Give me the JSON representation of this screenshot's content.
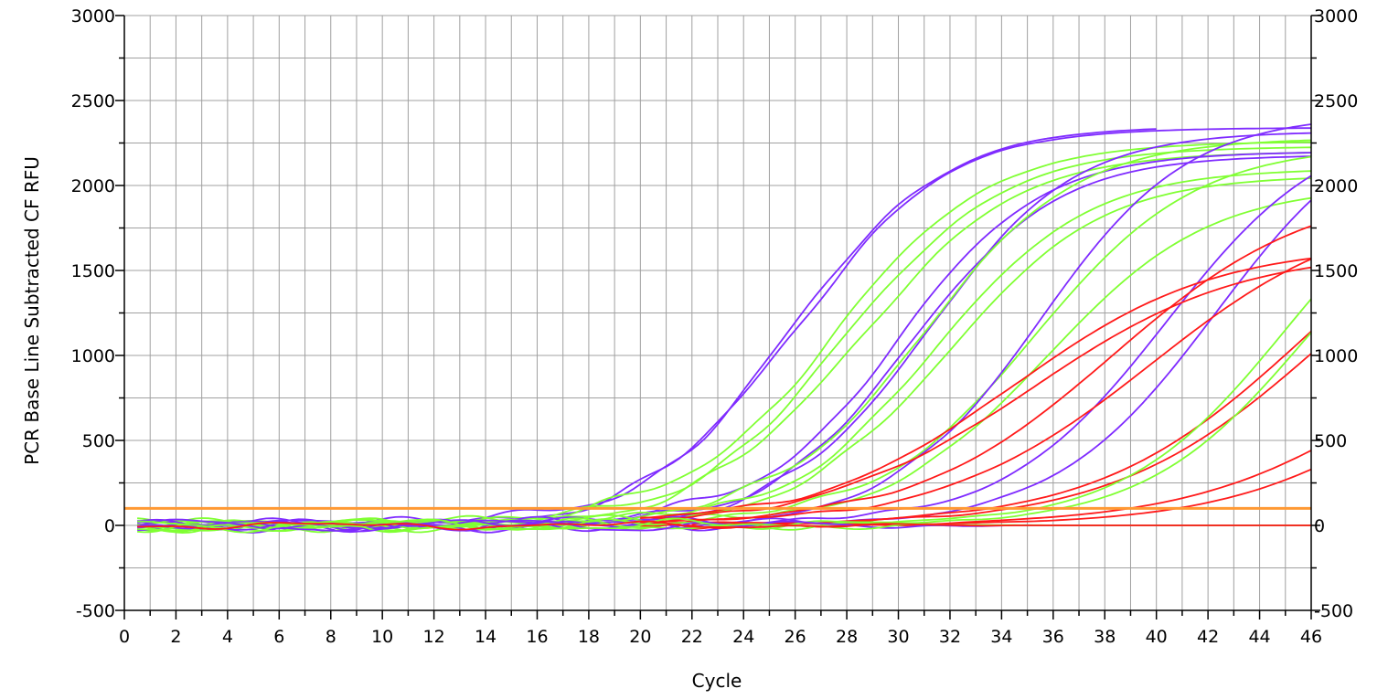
{
  "chart_data": {
    "type": "line",
    "title": "",
    "xlabel": "Cycle",
    "ylabel": "PCR Base Line Subtracted CF RFU",
    "xlim": [
      0,
      46
    ],
    "ylim": [
      -500,
      3000
    ],
    "x_ticks": [
      "0",
      "2",
      "4",
      "6",
      "8",
      "10",
      "12",
      "14",
      "16",
      "18",
      "20",
      "22",
      "24",
      "26",
      "28",
      "30",
      "32",
      "34",
      "36",
      "38",
      "40",
      "42",
      "44",
      "46"
    ],
    "y_ticks": [
      "-500",
      "0",
      "500",
      "1000",
      "1500",
      "2000",
      "2500",
      "3000"
    ],
    "grid": true,
    "legend": "none",
    "threshold": {
      "value": 100,
      "color": "#FF9933"
    },
    "colors": {
      "purple": "#7F2BFF",
      "green": "#80FF33",
      "red": "#FF1A1A"
    },
    "series": [
      {
        "color_key": "purple",
        "plateau": 2350,
        "midpoint": 26.0,
        "slope": 0.35,
        "start": 0.5,
        "end": 40
      },
      {
        "color_key": "purple",
        "plateau": 2340,
        "midpoint": 26.1,
        "slope": 0.35,
        "start": 0.5,
        "end": 46
      },
      {
        "color_key": "green",
        "plateau": 2260,
        "midpoint": 27.5,
        "slope": 0.33,
        "start": 0.5,
        "end": 46
      },
      {
        "color_key": "green",
        "plateau": 2230,
        "midpoint": 28.0,
        "slope": 0.33,
        "start": 0.5,
        "end": 46
      },
      {
        "color_key": "green",
        "plateau": 2200,
        "midpoint": 28.5,
        "slope": 0.33,
        "start": 0.5,
        "end": 46
      },
      {
        "color_key": "purple",
        "plateau": 2200,
        "midpoint": 30.0,
        "slope": 0.36,
        "start": 0.5,
        "end": 46
      },
      {
        "color_key": "purple",
        "plateau": 2180,
        "midpoint": 30.6,
        "slope": 0.36,
        "start": 0.5,
        "end": 46
      },
      {
        "color_key": "purple",
        "plateau": 2320,
        "midpoint": 31.2,
        "slope": 0.36,
        "start": 0.5,
        "end": 46
      },
      {
        "color_key": "green",
        "plateau": 2280,
        "midpoint": 31.0,
        "slope": 0.34,
        "start": 0.5,
        "end": 46
      },
      {
        "color_key": "green",
        "plateau": 2100,
        "midpoint": 31.5,
        "slope": 0.34,
        "start": 0.5,
        "end": 46
      },
      {
        "color_key": "green",
        "plateau": 2060,
        "midpoint": 32.0,
        "slope": 0.34,
        "start": 0.5,
        "end": 46
      },
      {
        "color_key": "green",
        "plateau": 2240,
        "midpoint": 35.3,
        "slope": 0.32,
        "start": 0.5,
        "end": 46
      },
      {
        "color_key": "green",
        "plateau": 2000,
        "midpoint": 35.8,
        "slope": 0.32,
        "start": 0.5,
        "end": 46
      },
      {
        "color_key": "purple",
        "plateau": 2420,
        "midpoint": 35.5,
        "slope": 0.35,
        "start": 0.5,
        "end": 46
      },
      {
        "color_key": "purple",
        "plateau": 2400,
        "midpoint": 40.4,
        "slope": 0.32,
        "start": 0.5,
        "end": 46
      },
      {
        "color_key": "purple",
        "plateau": 2500,
        "midpoint": 42.3,
        "slope": 0.32,
        "start": 0.5,
        "end": 46
      },
      {
        "color_key": "red",
        "plateau": 1650,
        "midpoint": 34.5,
        "slope": 0.26,
        "start": 20,
        "end": 46
      },
      {
        "color_key": "red",
        "plateau": 1620,
        "midpoint": 35.2,
        "slope": 0.25,
        "start": 20,
        "end": 46
      },
      {
        "color_key": "red",
        "plateau": 2000,
        "midpoint": 38.3,
        "slope": 0.26,
        "start": 20,
        "end": 46
      },
      {
        "color_key": "red",
        "plateau": 1900,
        "midpoint": 39.8,
        "slope": 0.25,
        "start": 20,
        "end": 46
      },
      {
        "color_key": "red",
        "plateau": 2200,
        "midpoint": 45.7,
        "slope": 0.25,
        "start": 20,
        "end": 46
      },
      {
        "color_key": "red",
        "plateau": 2100,
        "midpoint": 46.3,
        "slope": 0.25,
        "start": 20,
        "end": 46
      },
      {
        "color_key": "red",
        "plateau": 1500,
        "midpoint": 49.5,
        "slope": 0.25,
        "start": 22,
        "end": 46
      },
      {
        "color_key": "red",
        "plateau": 1300,
        "midpoint": 50.0,
        "slope": 0.27,
        "start": 22,
        "end": 46
      },
      {
        "color_key": "green",
        "plateau": 2300,
        "midpoint": 45.0,
        "slope": 0.32,
        "start": 0.5,
        "end": 46
      },
      {
        "color_key": "green",
        "plateau": 2200,
        "midpoint": 45.8,
        "slope": 0.32,
        "start": 0.5,
        "end": 46
      },
      {
        "color_key": "purple",
        "plateau": 0,
        "midpoint": 30,
        "slope": 0.3,
        "start": 0.5,
        "end": 46
      },
      {
        "color_key": "green",
        "plateau": 0,
        "midpoint": 30,
        "slope": 0.3,
        "start": 0.5,
        "end": 46
      },
      {
        "color_key": "red",
        "plateau": 0,
        "midpoint": 30,
        "slope": 0.3,
        "start": 0.5,
        "end": 46
      }
    ]
  }
}
